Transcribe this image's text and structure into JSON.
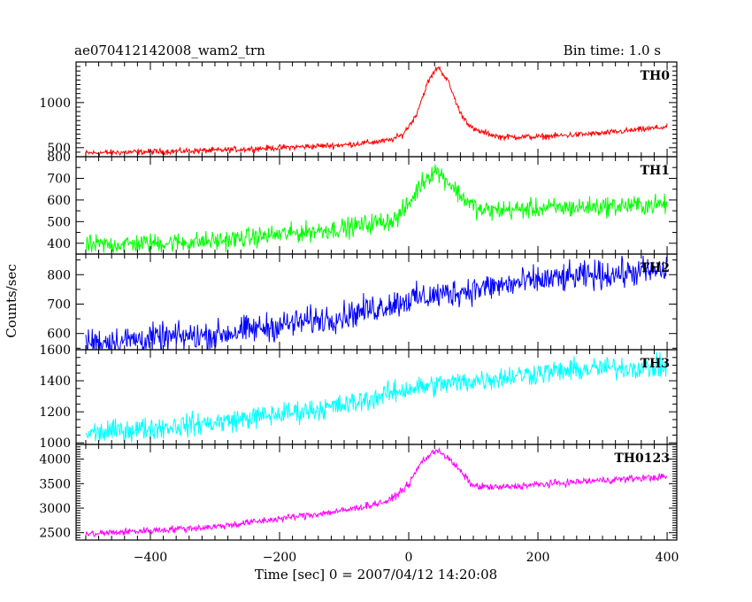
{
  "chart_data": {
    "type": "line",
    "title": "ae070412142008_wam2_trn",
    "bin_time": "Bin time: 1.0 s",
    "xlabel": "Time [sec] 0 = 2007/04/12 14:20:08",
    "ylabel": "Counts/sec",
    "xlim": [
      -515,
      415
    ],
    "x_ticks": [
      -400,
      -200,
      0,
      200,
      400
    ],
    "x_tick_labels": [
      "−400",
      "−200",
      "0",
      "200",
      "400"
    ],
    "grid": false,
    "panels": [
      {
        "name": "TH0",
        "color": "#ff0000",
        "ylim": [
          400,
          1450
        ],
        "y_ticks": [
          500,
          1000
        ],
        "y_tick_labels": [
          "500",
          "1000"
        ],
        "x": [
          -500,
          -300,
          -100,
          -30,
          -10,
          10,
          30,
          45,
          60,
          80,
          100,
          140,
          200,
          300,
          400
        ],
        "y": [
          440,
          470,
          530,
          580,
          640,
          840,
          1230,
          1400,
          1250,
          880,
          700,
          620,
          620,
          660,
          730
        ],
        "noise": 20
      },
      {
        "name": "TH1",
        "color": "#00ff00",
        "ylim": [
          350,
          800
        ],
        "y_ticks": [
          400,
          500,
          600,
          700,
          800
        ],
        "y_tick_labels": [
          "400",
          "500",
          "600",
          "700",
          "800"
        ],
        "x": [
          -500,
          -300,
          -100,
          -20,
          0,
          20,
          40,
          60,
          80,
          110,
          200,
          300,
          400
        ],
        "y": [
          390,
          410,
          470,
          510,
          580,
          680,
          740,
          690,
          620,
          550,
          560,
          570,
          580
        ],
        "noise": 28
      },
      {
        "name": "TH2",
        "color": "#0000ff",
        "ylim": [
          545,
          870
        ],
        "y_ticks": [
          600,
          700,
          800
        ],
        "y_tick_labels": [
          "600",
          "700",
          "800"
        ],
        "x": [
          -500,
          -300,
          -100,
          0,
          100,
          200,
          300,
          400
        ],
        "y": [
          570,
          595,
          660,
          715,
          750,
          780,
          800,
          815
        ],
        "noise": 30
      },
      {
        "name": "TH3",
        "color": "#00ffff",
        "ylim": [
          990,
          1600
        ],
        "y_ticks": [
          1000,
          1200,
          1400,
          1600
        ],
        "y_tick_labels": [
          "1000",
          "1200",
          "1400",
          "1600"
        ],
        "x": [
          -500,
          -300,
          -100,
          0,
          100,
          200,
          300,
          400
        ],
        "y": [
          1060,
          1130,
          1240,
          1350,
          1400,
          1450,
          1480,
          1490
        ],
        "noise": 45
      },
      {
        "name": "TH0123",
        "color": "#ff00ff",
        "ylim": [
          2350,
          4300
        ],
        "y_ticks": [
          2500,
          3000,
          3500,
          4000
        ],
        "y_tick_labels": [
          "2500",
          "3000",
          "3500",
          "4000"
        ],
        "x": [
          -500,
          -300,
          -100,
          -30,
          0,
          20,
          45,
          70,
          100,
          140,
          200,
          300,
          400
        ],
        "y": [
          2470,
          2620,
          2950,
          3150,
          3480,
          3950,
          4200,
          3900,
          3450,
          3420,
          3480,
          3570,
          3640
        ],
        "noise": 45
      }
    ]
  }
}
